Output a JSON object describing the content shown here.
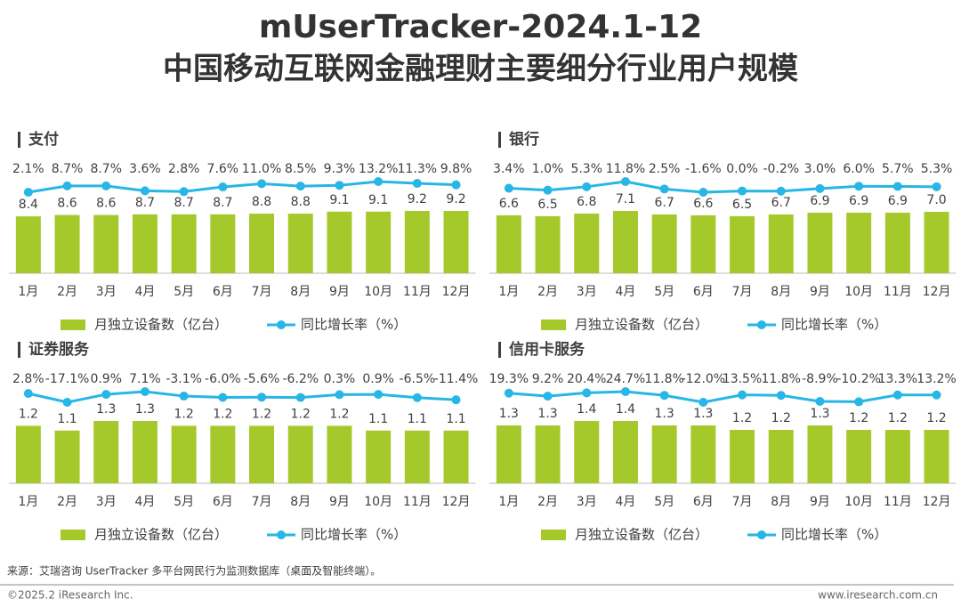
{
  "title": "mUserTracker-2024.1-12",
  "subtitle": "中国移动互联网金融理财主要细分行业用户规模",
  "source": "来源：艾瑞咨询 UserTracker 多平台网民行为监测数据库（桌面及智能终端）。",
  "copyright": "©2025.2 iResearch Inc.",
  "website": "www.iresearch.com.cn",
  "chart_data": [
    {
      "type": "combo",
      "title": "支付",
      "categories": [
        "1月",
        "2月",
        "3月",
        "4月",
        "5月",
        "6月",
        "7月",
        "8月",
        "9月",
        "10月",
        "11月",
        "12月"
      ],
      "series": [
        {
          "name": "月独立设备数（亿台）",
          "kind": "bar",
          "color": "#a5c92b",
          "values": [
            8.4,
            8.6,
            8.6,
            8.7,
            8.7,
            8.7,
            8.8,
            8.8,
            9.1,
            9.1,
            9.2,
            9.2
          ],
          "value_labels": [
            "8.4",
            "8.6",
            "8.6",
            "8.7",
            "8.7",
            "8.7",
            "8.8",
            "8.8",
            "9.1",
            "9.1",
            "9.2",
            "9.2"
          ]
        },
        {
          "name": "同比增长率（%）",
          "kind": "line",
          "color": "#27b6e6",
          "values": [
            2.1,
            8.7,
            8.7,
            3.6,
            2.8,
            7.6,
            11.0,
            8.5,
            9.3,
            13.2,
            11.3,
            9.8
          ],
          "value_labels": [
            "2.1%",
            "8.7%",
            "8.7%",
            "3.6%",
            "2.8%",
            "7.6%",
            "11.0%",
            "8.5%",
            "9.3%",
            "13.2%",
            "11.3%",
            "9.8%"
          ]
        }
      ]
    },
    {
      "type": "combo",
      "title": "银行",
      "categories": [
        "1月",
        "2月",
        "3月",
        "4月",
        "5月",
        "6月",
        "7月",
        "8月",
        "9月",
        "10月",
        "11月",
        "12月"
      ],
      "series": [
        {
          "name": "月独立设备数（亿台）",
          "kind": "bar",
          "color": "#a5c92b",
          "values": [
            6.6,
            6.5,
            6.8,
            7.1,
            6.7,
            6.6,
            6.5,
            6.7,
            6.9,
            6.9,
            6.9,
            7.0
          ],
          "value_labels": [
            "6.6",
            "6.5",
            "6.8",
            "7.1",
            "6.7",
            "6.6",
            "6.5",
            "6.7",
            "6.9",
            "6.9",
            "6.9",
            "7.0"
          ]
        },
        {
          "name": "同比增长率（%）",
          "kind": "line",
          "color": "#27b6e6",
          "values": [
            3.4,
            1.0,
            5.3,
            11.8,
            2.5,
            -1.6,
            0.0,
            -0.2,
            3.0,
            6.0,
            5.7,
            5.3
          ],
          "value_labels": [
            "3.4%",
            "1.0%",
            "5.3%",
            "11.8%",
            "2.5%",
            "-1.6%",
            "0.0%",
            "-0.2%",
            "3.0%",
            "6.0%",
            "5.7%",
            "5.3%"
          ]
        }
      ]
    },
    {
      "type": "combo",
      "title": "证券服务",
      "categories": [
        "1月",
        "2月",
        "3月",
        "4月",
        "5月",
        "6月",
        "7月",
        "8月",
        "9月",
        "10月",
        "11月",
        "12月"
      ],
      "series": [
        {
          "name": "月独立设备数（亿台）",
          "kind": "bar",
          "color": "#a5c92b",
          "values": [
            1.2,
            1.1,
            1.3,
            1.3,
            1.2,
            1.2,
            1.2,
            1.2,
            1.2,
            1.1,
            1.1,
            1.1
          ],
          "value_labels": [
            "1.2",
            "1.1",
            "1.3",
            "1.3",
            "1.2",
            "1.2",
            "1.2",
            "1.2",
            "1.2",
            "1.1",
            "1.1",
            "1.1"
          ]
        },
        {
          "name": "同比增长率（%）",
          "kind": "line",
          "color": "#27b6e6",
          "values": [
            2.8,
            -17.1,
            0.9,
            7.1,
            -3.1,
            -6.0,
            -5.6,
            -6.2,
            0.3,
            0.9,
            -6.5,
            -11.4
          ],
          "value_labels": [
            "2.8%",
            "-17.1%",
            "0.9%",
            "7.1%",
            "-3.1%",
            "-6.0%",
            "-5.6%",
            "-6.2%",
            "0.3%",
            "0.9%",
            "-6.5%",
            "-11.4%"
          ]
        }
      ]
    },
    {
      "type": "combo",
      "title": "信用卡服务",
      "categories": [
        "1月",
        "2月",
        "3月",
        "4月",
        "5月",
        "6月",
        "7月",
        "8月",
        "9月",
        "10月",
        "11月",
        "12月"
      ],
      "series": [
        {
          "name": "月独立设备数（亿台）",
          "kind": "bar",
          "color": "#a5c92b",
          "values": [
            1.3,
            1.3,
            1.4,
            1.4,
            1.3,
            1.3,
            1.2,
            1.2,
            1.3,
            1.2,
            1.2,
            1.2
          ],
          "value_labels": [
            "1.3",
            "1.3",
            "1.4",
            "1.4",
            "1.3",
            "1.3",
            "1.2",
            "1.2",
            "1.3",
            "1.2",
            "1.2",
            "1.2"
          ]
        },
        {
          "name": "同比增长率（%）",
          "kind": "line",
          "color": "#27b6e6",
          "values": [
            19.3,
            9.2,
            20.4,
            24.7,
            11.8,
            -12.0,
            13.5,
            11.8,
            -8.9,
            -10.2,
            13.3,
            13.2
          ],
          "value_labels": [
            "19.3%",
            "9.2%",
            "20.4%",
            "24.7%",
            "11.8%",
            "-12.0%",
            "13.5%",
            "11.8%",
            "-8.9%",
            "-10.2%",
            "13.3%",
            "13.2%"
          ]
        }
      ]
    }
  ]
}
